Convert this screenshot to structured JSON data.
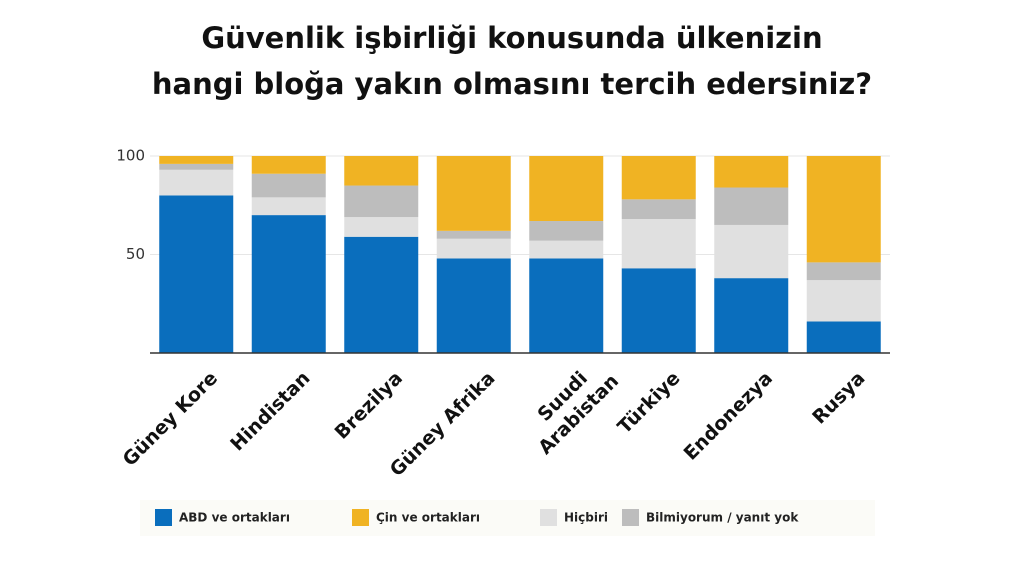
{
  "chart_data": {
    "type": "stacked_bar",
    "title": [
      "Güvenlik işbirliği konusunda ülkenizin",
      "hangi bloğa yakın olmasını tercih edersiniz?"
    ],
    "categories": [
      "Güney Kore",
      "Hindistan",
      "Brezilya",
      "Güney Afrika",
      "Suudi Arabistan",
      "Türkiye",
      "Endonezya",
      "Rusya"
    ],
    "series": [
      {
        "name": "ABD ve ortakları",
        "color": "#0a6ebd",
        "values": [
          80,
          70,
          59,
          48,
          48,
          43,
          38,
          16
        ]
      },
      {
        "name": "Hiçbiri",
        "color": "#e0e0e0",
        "values": [
          13,
          9,
          10,
          10,
          9,
          25,
          27,
          21
        ]
      },
      {
        "name": "Bilmiyorum / yanıt yok",
        "color": "#bdbdbd",
        "values": [
          3,
          12,
          16,
          4,
          10,
          10,
          19,
          9
        ]
      },
      {
        "name": "Çin ve ortakları",
        "color": "#f0b323",
        "values": [
          4,
          9,
          15,
          38,
          33,
          22,
          16,
          54
        ]
      }
    ],
    "legend_order": [
      0,
      3,
      1,
      2
    ],
    "ylim": [
      0,
      100
    ],
    "yticks": [
      50,
      100
    ],
    "grid": true
  }
}
